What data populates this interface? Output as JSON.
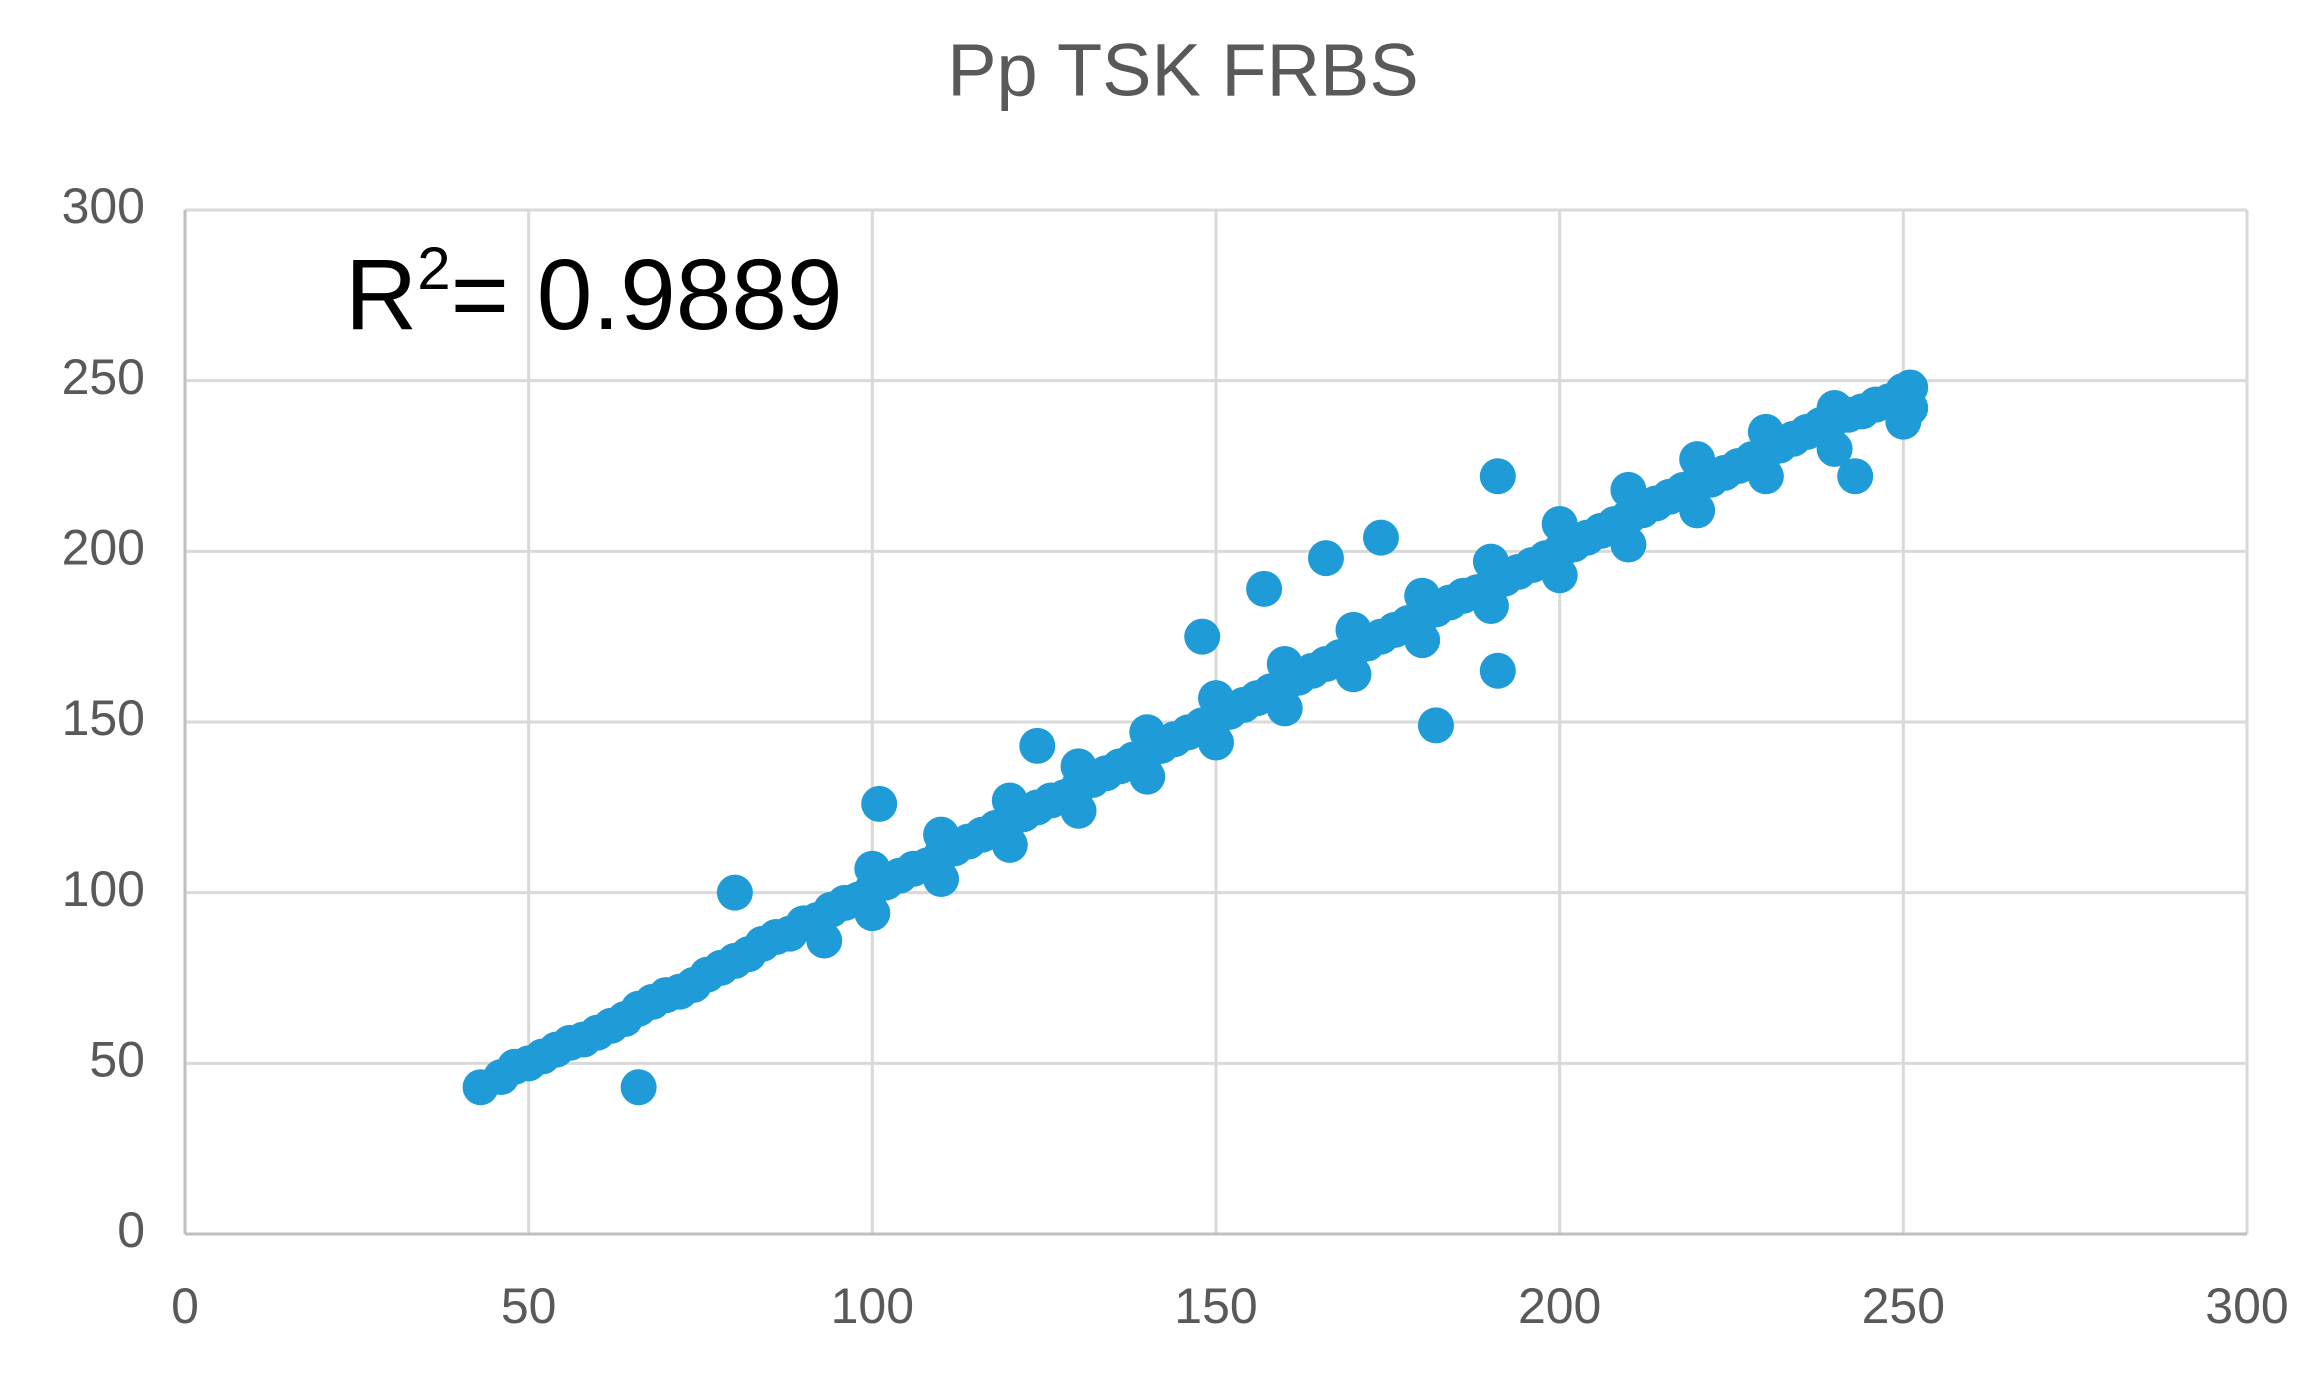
{
  "chart_data": {
    "type": "scatter",
    "title": "Pp TSK FRBS",
    "annotation": {
      "text": "R",
      "superscript": "2",
      "rest": "= 0.9889"
    },
    "color": "#1f9bd7",
    "grid": true,
    "xlim": [
      0,
      300
    ],
    "ylim": [
      0,
      300
    ],
    "xticks": [
      0,
      50,
      100,
      150,
      200,
      250,
      300
    ],
    "yticks": [
      0,
      50,
      100,
      150,
      200,
      250,
      300
    ],
    "x": [
      43,
      46,
      48,
      50,
      52,
      54,
      56,
      58,
      60,
      62,
      64,
      66,
      68,
      70,
      72,
      74,
      76,
      78,
      80,
      82,
      84,
      86,
      88,
      90,
      92,
      94,
      96,
      98,
      100,
      102,
      104,
      106,
      108,
      110,
      112,
      114,
      116,
      118,
      120,
      122,
      124,
      126,
      128,
      130,
      132,
      134,
      136,
      138,
      140,
      142,
      144,
      146,
      148,
      150,
      152,
      154,
      156,
      158,
      160,
      162,
      164,
      166,
      168,
      170,
      172,
      174,
      176,
      178,
      180,
      182,
      184,
      186,
      188,
      190,
      192,
      194,
      196,
      198,
      200,
      202,
      204,
      206,
      208,
      210,
      212,
      214,
      216,
      218,
      220,
      222,
      224,
      226,
      228,
      230,
      232,
      234,
      236,
      238,
      240,
      242,
      244,
      246,
      248,
      250,
      100,
      110,
      120,
      130,
      140,
      150,
      160,
      170,
      180,
      190,
      200,
      210,
      220,
      230,
      240,
      250,
      100,
      110,
      120,
      130,
      140,
      150,
      160,
      170,
      180,
      190,
      200,
      210,
      220,
      230,
      240,
      250,
      66,
      80,
      182,
      191,
      166,
      148,
      157,
      174,
      191,
      251,
      251,
      124,
      101,
      93,
      243
    ],
    "y": [
      43,
      46,
      49,
      50,
      52,
      54,
      56,
      57,
      59,
      61,
      63,
      66,
      68,
      70,
      71,
      73,
      76,
      78,
      80,
      82,
      85,
      87,
      88,
      91,
      92,
      95,
      97,
      98,
      101,
      103,
      105,
      107,
      108,
      111,
      113,
      115,
      117,
      119,
      121,
      123,
      125,
      127,
      128,
      131,
      133,
      135,
      137,
      139,
      141,
      143,
      145,
      147,
      149,
      151,
      153,
      155,
      157,
      159,
      161,
      163,
      165,
      167,
      169,
      171,
      173,
      175,
      177,
      179,
      181,
      183,
      185,
      187,
      188,
      190,
      192,
      194,
      196,
      198,
      200,
      202,
      204,
      206,
      208,
      210,
      212,
      214,
      216,
      218,
      220,
      221,
      223,
      225,
      227,
      229,
      231,
      233,
      235,
      237,
      239,
      240,
      241,
      243,
      244,
      246,
      107,
      117,
      127,
      137,
      147,
      157,
      167,
      177,
      187,
      197,
      208,
      218,
      227,
      235,
      242,
      247,
      94,
      104,
      114,
      124,
      134,
      144,
      154,
      164,
      174,
      184,
      193,
      202,
      212,
      222,
      230,
      238,
      43,
      100,
      149,
      222,
      198,
      175,
      189,
      204,
      165,
      248,
      242,
      143,
      126,
      86,
      222
    ]
  }
}
